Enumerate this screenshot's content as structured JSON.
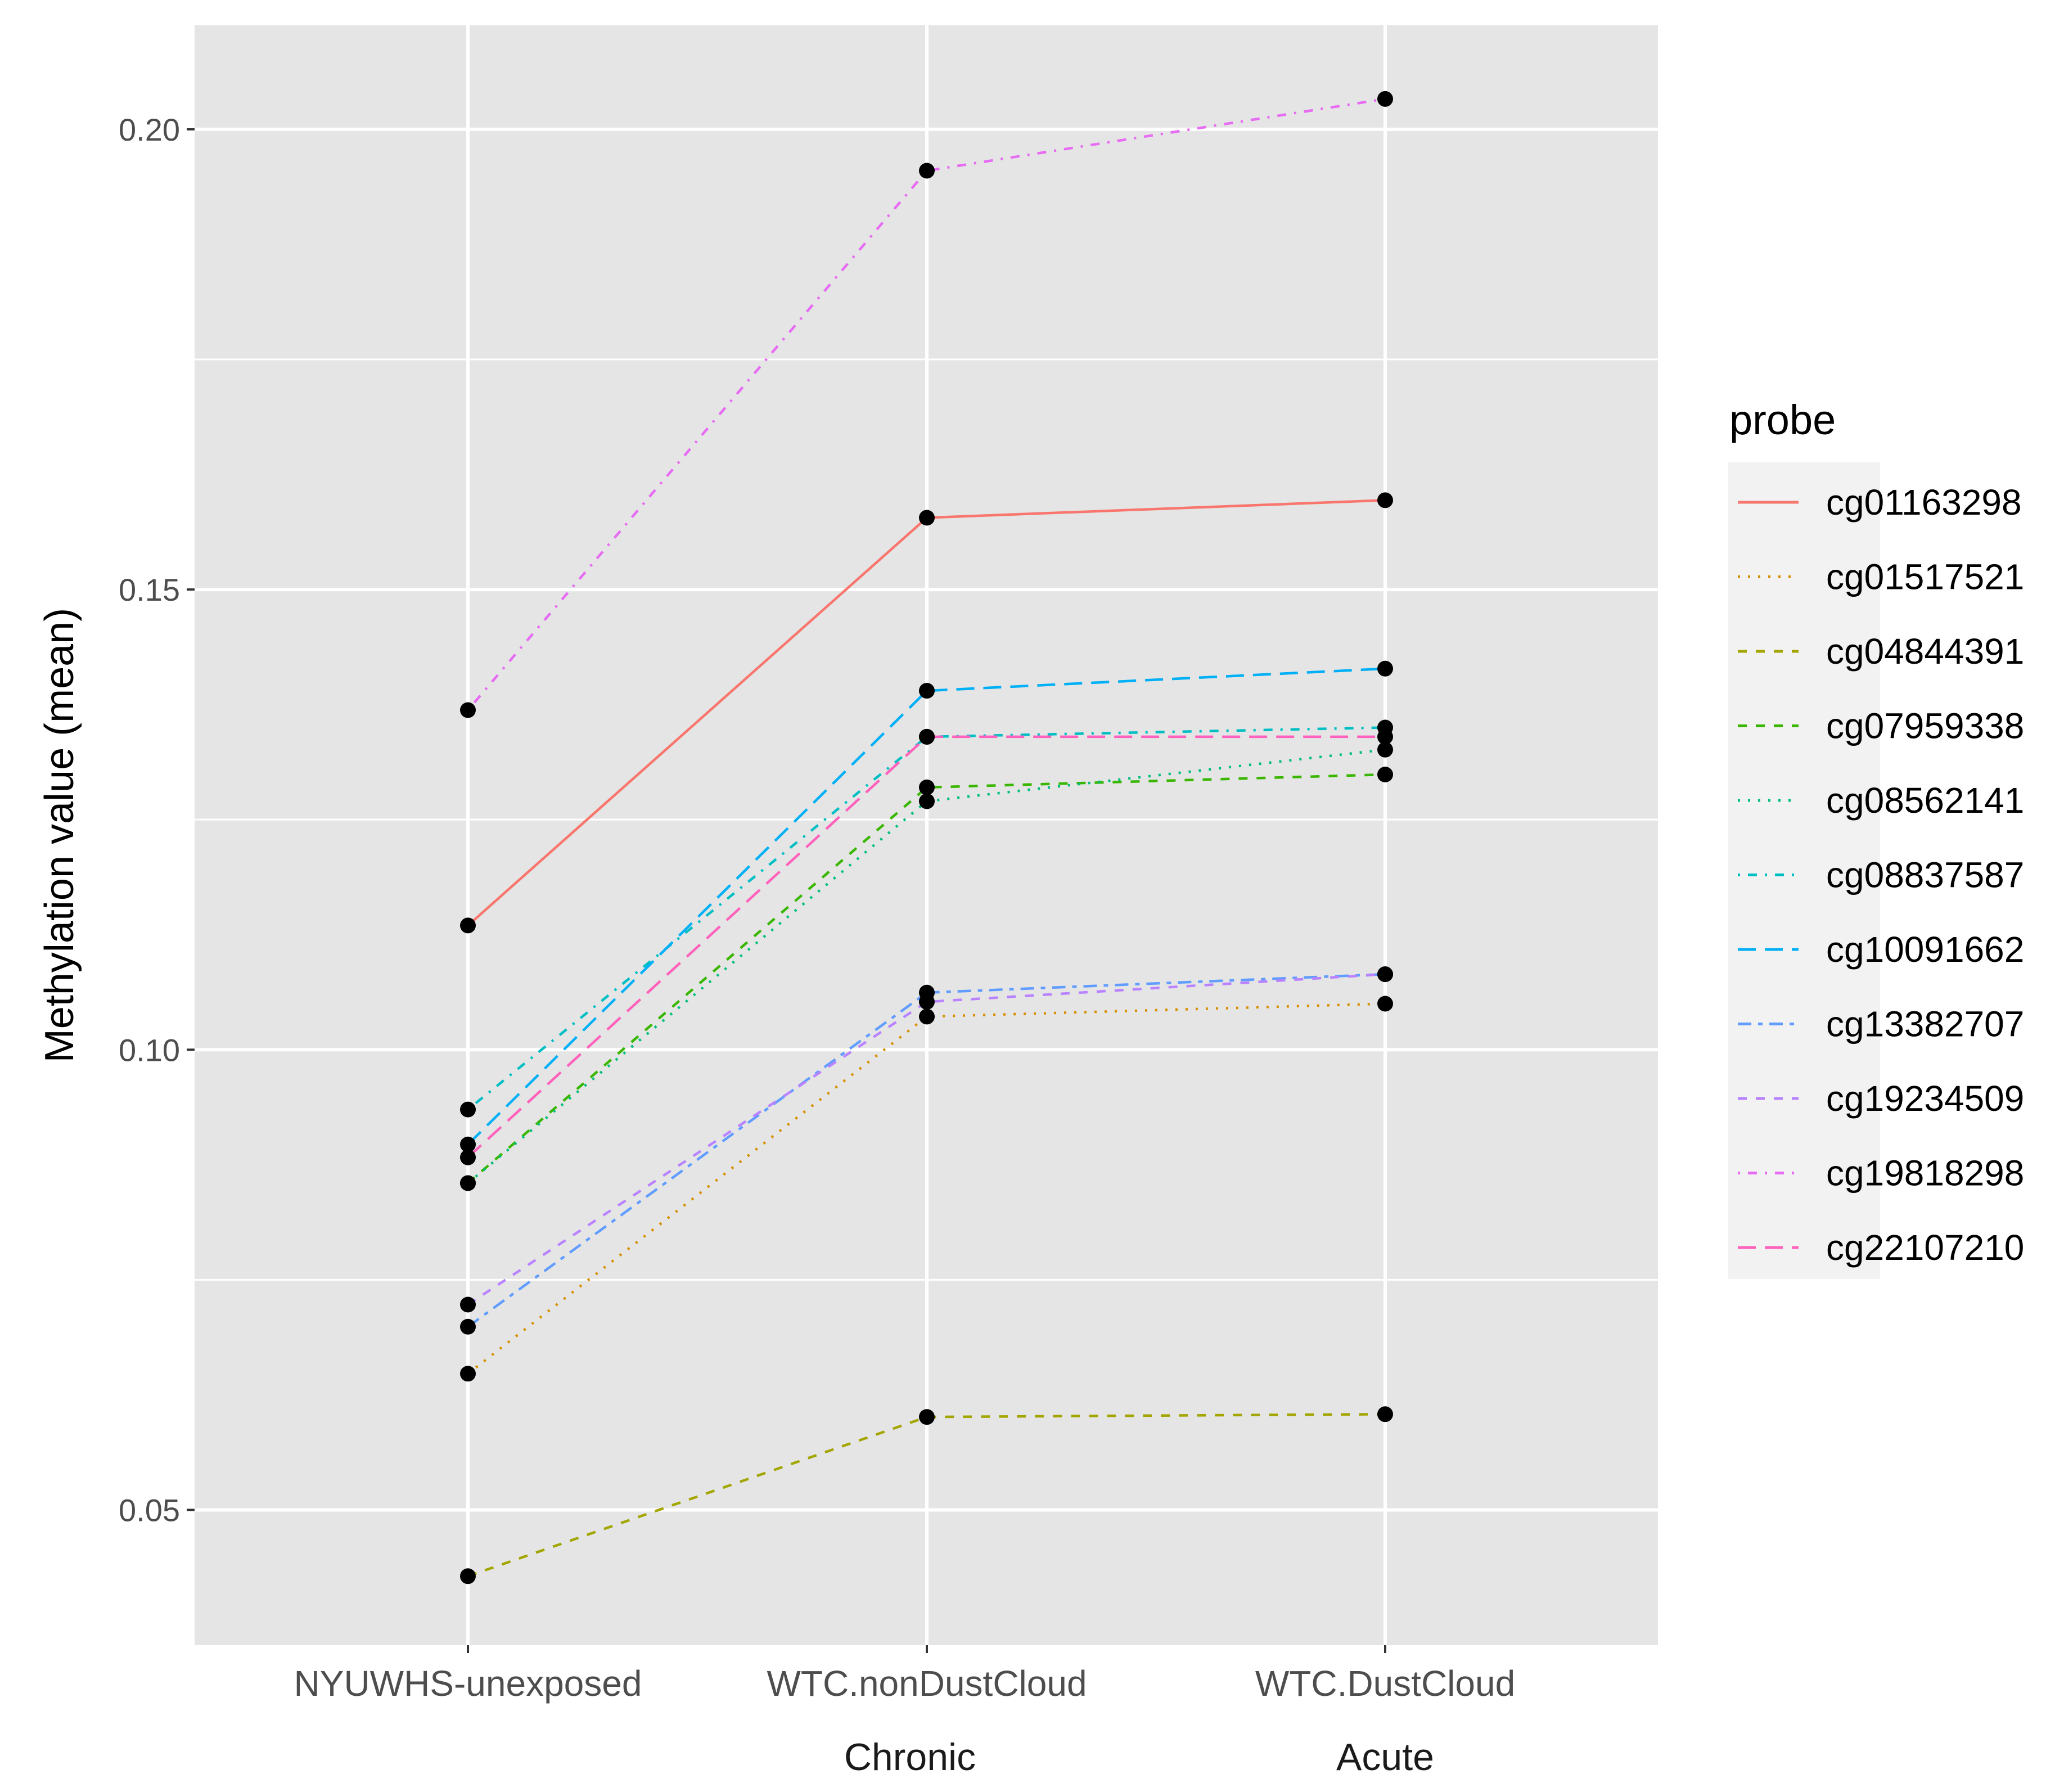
{
  "chart_data": {
    "type": "line",
    "title": "",
    "xlabel": "",
    "ylabel": "Methylation value (mean)",
    "categories": [
      "NYUWHS-unexposed",
      "WTC.nonDustCloud",
      "WTC.DustCloud"
    ],
    "category_sublabels": [
      "",
      "Chronic",
      "Acute"
    ],
    "y_ticks": [
      0.05,
      0.1,
      0.15,
      0.2
    ],
    "y_tick_labels": [
      "0.05",
      "0.10",
      "0.15",
      "0.20"
    ],
    "ylim": [
      0.0353,
      0.2113
    ],
    "grid": true,
    "legend_position": "right",
    "legend_title": "probe",
    "series": [
      {
        "name": "cg01163298",
        "color": "#F8766D",
        "linetype": "solid",
        "values": [
          0.1135,
          0.1578,
          0.1597
        ]
      },
      {
        "name": "cg01517521",
        "color": "#D89000",
        "linetype": "dotted",
        "values": [
          0.0648,
          0.1036,
          0.105
        ]
      },
      {
        "name": "cg04844391",
        "color": "#A3A500",
        "linetype": "dashed",
        "values": [
          0.0428,
          0.0601,
          0.0604
        ]
      },
      {
        "name": "cg07959338",
        "color": "#39B600",
        "linetype": "dashed",
        "values": [
          0.0855,
          0.1285,
          0.1299
        ]
      },
      {
        "name": "cg08562141",
        "color": "#00BF7D",
        "linetype": "dotted",
        "values": [
          0.0855,
          0.127,
          0.1326
        ]
      },
      {
        "name": "cg08837587",
        "color": "#00BFC4",
        "linetype": "dotdash",
        "values": [
          0.0935,
          0.134,
          0.135
        ]
      },
      {
        "name": "cg10091662",
        "color": "#00B0F6",
        "linetype": "longdash",
        "values": [
          0.0897,
          0.139,
          0.1414
        ]
      },
      {
        "name": "cg13382707",
        "color": "#619CFF",
        "linetype": "twodash",
        "values": [
          0.0699,
          0.1062,
          0.1082
        ]
      },
      {
        "name": "cg19234509",
        "color": "#B983FF",
        "linetype": "dashed",
        "values": [
          0.0723,
          0.1052,
          0.1082
        ]
      },
      {
        "name": "cg19818298",
        "color": "#E76BF3",
        "linetype": "dotdash",
        "values": [
          0.1369,
          0.1955,
          0.2033
        ]
      },
      {
        "name": "cg22107210",
        "color": "#FF62BC",
        "linetype": "longdash",
        "values": [
          0.0883,
          0.134,
          0.134
        ]
      }
    ]
  }
}
